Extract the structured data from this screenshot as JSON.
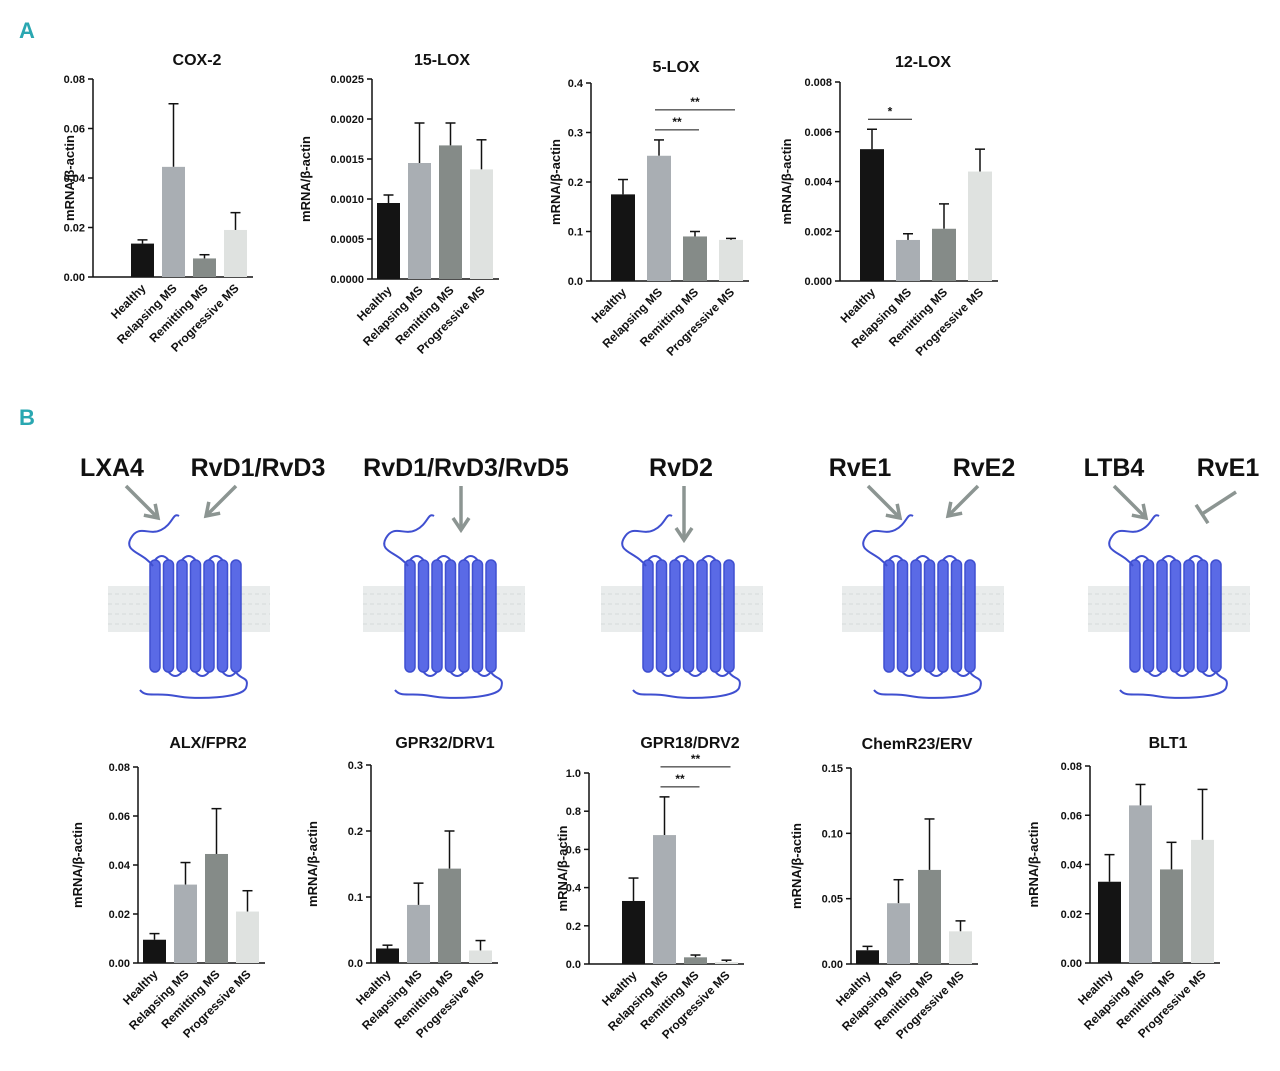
{
  "panels": {
    "a": "A",
    "b": "B"
  },
  "colors": {
    "healthy": "#141414",
    "relapsing": "#a9aeb3",
    "remitting": "#858b88",
    "progressive": "#dfe2e0",
    "receptor": "#5a6ae6",
    "receptor_stroke": "#3f4fd0",
    "arrow": "#8c9592",
    "membrane": "#e9ecec",
    "accent": "#2aa7b1"
  },
  "ligand_groups": [
    {
      "receptor": "ALX/FPR2",
      "ligands": [
        {
          "name": "LXA4",
          "effect": "activates"
        },
        {
          "name": "RvD1/RvD3",
          "effect": "activates"
        }
      ]
    },
    {
      "receptor": "GPR32/DRV1",
      "ligands": [
        {
          "name": "RvD1/RvD3/RvD5",
          "effect": "activates"
        }
      ]
    },
    {
      "receptor": "GPR18/DRV2",
      "ligands": [
        {
          "name": "RvD2",
          "effect": "activates"
        }
      ]
    },
    {
      "receptor": "ChemR23/ERV",
      "ligands": [
        {
          "name": "RvE1",
          "effect": "activates"
        },
        {
          "name": "RvE2",
          "effect": "activates"
        }
      ]
    },
    {
      "receptor": "BLT1",
      "ligands": [
        {
          "name": "LTB4",
          "effect": "activates"
        },
        {
          "name": "RvE1",
          "effect": "inhibits"
        }
      ]
    }
  ],
  "chart_data": [
    {
      "type": "bar",
      "title": "COX-2",
      "ylabel": "mRNA/β-actin",
      "categories": [
        "Healthy",
        "Relapsing MS",
        "Remitting MS",
        "Progressive MS"
      ],
      "values": [
        0.0135,
        0.0445,
        0.0075,
        0.019
      ],
      "errors": [
        0.0015,
        0.0255,
        0.0015,
        0.007
      ],
      "ylim": [
        0,
        0.08
      ],
      "yticks": [
        "0.00",
        "0.02",
        "0.04",
        "0.06",
        "0.08"
      ],
      "significance": []
    },
    {
      "type": "bar",
      "title": "15-LOX",
      "ylabel": "mRNA/β-actin",
      "categories": [
        "Healthy",
        "Relapsing MS",
        "Remitting MS",
        "Progressive MS"
      ],
      "values": [
        0.00095,
        0.00145,
        0.00167,
        0.00137
      ],
      "errors": [
        0.0001,
        0.0005,
        0.00028,
        0.00037
      ],
      "ylim": [
        0,
        0.0025
      ],
      "yticks": [
        "0.0000",
        "0.0005",
        "0.0010",
        "0.0015",
        "0.0020",
        "0.0025"
      ],
      "significance": []
    },
    {
      "type": "bar",
      "title": "5-LOX",
      "ylabel": "mRNA/β-actin",
      "categories": [
        "Healthy",
        "Relapsing MS",
        "Remitting MS",
        "Progressive MS"
      ],
      "values": [
        0.175,
        0.253,
        0.09,
        0.083
      ],
      "errors": [
        0.03,
        0.032,
        0.01,
        0.003
      ],
      "ylim": [
        0,
        0.4
      ],
      "yticks": [
        "0.0",
        "0.1",
        "0.2",
        "0.3",
        "0.4"
      ],
      "significance": [
        {
          "from": 1,
          "to": 2,
          "label": "**"
        },
        {
          "from": 1,
          "to": 3,
          "label": "**"
        }
      ]
    },
    {
      "type": "bar",
      "title": "12-LOX",
      "ylabel": "mRNA/β-actin",
      "categories": [
        "Healthy",
        "Relapsing MS",
        "Remitting MS",
        "Progressive MS"
      ],
      "values": [
        0.0053,
        0.00165,
        0.0021,
        0.0044
      ],
      "errors": [
        0.0008,
        0.00025,
        0.001,
        0.0009
      ],
      "ylim": [
        0,
        0.008
      ],
      "yticks": [
        "0.000",
        "0.002",
        "0.004",
        "0.006",
        "0.008"
      ],
      "significance": [
        {
          "from": 0,
          "to": 1,
          "label": "*"
        }
      ]
    },
    {
      "type": "bar",
      "title": "ALX/FPR2",
      "ylabel": "mRNA/β-actin",
      "categories": [
        "Healthy",
        "Relapsing MS",
        "Remitting MS",
        "Progressive MS"
      ],
      "values": [
        0.0095,
        0.032,
        0.0445,
        0.021
      ],
      "errors": [
        0.0025,
        0.009,
        0.0185,
        0.0085
      ],
      "ylim": [
        0,
        0.08
      ],
      "yticks": [
        "0.00",
        "0.02",
        "0.04",
        "0.06",
        "0.08"
      ],
      "significance": []
    },
    {
      "type": "bar",
      "title": "GPR32/DRV1",
      "ylabel": "mRNA/β-actin",
      "categories": [
        "Healthy",
        "Relapsing MS",
        "Remitting MS",
        "Progressive MS"
      ],
      "values": [
        0.022,
        0.088,
        0.143,
        0.019
      ],
      "errors": [
        0.005,
        0.033,
        0.057,
        0.015
      ],
      "ylim": [
        0,
        0.3
      ],
      "yticks": [
        "0.0",
        "0.1",
        "0.2",
        "0.3"
      ],
      "significance": []
    },
    {
      "type": "bar",
      "title": "GPR18/DRV2",
      "ylabel": "mRNA/β-actin",
      "categories": [
        "Healthy",
        "Relapsing MS",
        "Remitting MS",
        "Progressive MS"
      ],
      "values": [
        0.33,
        0.675,
        0.035,
        0.01
      ],
      "errors": [
        0.12,
        0.2,
        0.012,
        0.01
      ],
      "ylim": [
        0,
        1.0
      ],
      "yticks": [
        "0.0",
        "0.2",
        "0.4",
        "0.6",
        "0.8",
        "1.0"
      ],
      "significance": [
        {
          "from": 1,
          "to": 2,
          "label": "**"
        },
        {
          "from": 1,
          "to": 3,
          "label": "**"
        }
      ]
    },
    {
      "type": "bar",
      "title": "ChemR23/ERV",
      "ylabel": "mRNA/β-actin",
      "categories": [
        "Healthy",
        "Relapsing MS",
        "Remitting MS",
        "Progressive MS"
      ],
      "values": [
        0.0105,
        0.0465,
        0.072,
        0.025
      ],
      "errors": [
        0.003,
        0.018,
        0.039,
        0.008
      ],
      "ylim": [
        0,
        0.15
      ],
      "yticks": [
        "0.00",
        "0.05",
        "0.10",
        "0.15"
      ],
      "significance": []
    },
    {
      "type": "bar",
      "title": "BLT1",
      "ylabel": "mRNA/β-actin",
      "categories": [
        "Healthy",
        "Relapsing MS",
        "Remitting MS",
        "Progressive MS"
      ],
      "values": [
        0.033,
        0.064,
        0.038,
        0.05
      ],
      "errors": [
        0.011,
        0.0085,
        0.011,
        0.0205
      ],
      "ylim": [
        0,
        0.08
      ],
      "yticks": [
        "0.00",
        "0.02",
        "0.04",
        "0.06",
        "0.08"
      ],
      "significance": []
    }
  ]
}
